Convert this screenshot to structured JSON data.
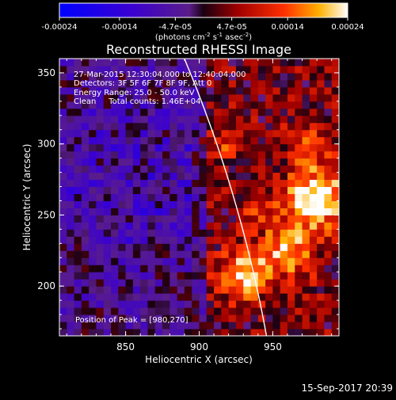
{
  "chart_data": {
    "type": "heatmap",
    "title": "Reconstructed RHESSI Image",
    "xlabel": "Heliocentric X (arcsec)",
    "ylabel": "Heliocentric Y (arcsec)",
    "xlim": [
      805,
      995
    ],
    "ylim": [
      165,
      360
    ],
    "x_ticks": [
      850,
      900,
      950
    ],
    "y_ticks": [
      200,
      250,
      300,
      350
    ],
    "colorbar": {
      "ticks": [
        "-0.00024",
        "-0.00014",
        "-4.7e-05",
        "4.7e-05",
        "0.00014",
        "0.00024"
      ],
      "tick_values": [
        -0.00024,
        -0.00014,
        -4.7e-05,
        4.7e-05,
        0.00014,
        0.00024
      ],
      "range": [
        -0.00024,
        0.00024
      ],
      "units_prefix": "(photons cm",
      "units_exp1": "-2",
      "units_mid": " s",
      "units_exp2": "-1",
      "units_mid2": " asec",
      "units_exp3": "-2",
      "units_suffix": ")"
    },
    "annotations": [
      "27-Mar-2015 12:30:04.000 to 12:40:04.000",
      "Detectors: 3F 5F 6F 7F 8F 9F, Att 0",
      "Energy Range: 25.0 - 50.0 keV",
      "Clean     Total counts: 1.46E+04"
    ],
    "peak_label": "Position of Peak = [980,270]",
    "peak": [
      980,
      270
    ],
    "limb_arcsec": 960,
    "hotspots": [
      {
        "x": 980,
        "y": 262,
        "radius": 20,
        "value": 0.00024
      },
      {
        "x": 930,
        "y": 208,
        "radius": 16,
        "value": 0.00019
      },
      {
        "x": 960,
        "y": 225,
        "radius": 18,
        "value": 0.00017
      },
      {
        "x": 975,
        "y": 300,
        "radius": 14,
        "value": 0.00012
      },
      {
        "x": 915,
        "y": 300,
        "radius": 12,
        "value": 8e-05
      },
      {
        "x": 940,
        "y": 255,
        "radius": 12,
        "value": 9e-05
      }
    ],
    "grid": false
  },
  "footer": {
    "timestamp": "15-Sep-2017 20:39"
  },
  "colors": {
    "background": "#000000",
    "limb": "#ffffff",
    "text": "#ffffff"
  }
}
